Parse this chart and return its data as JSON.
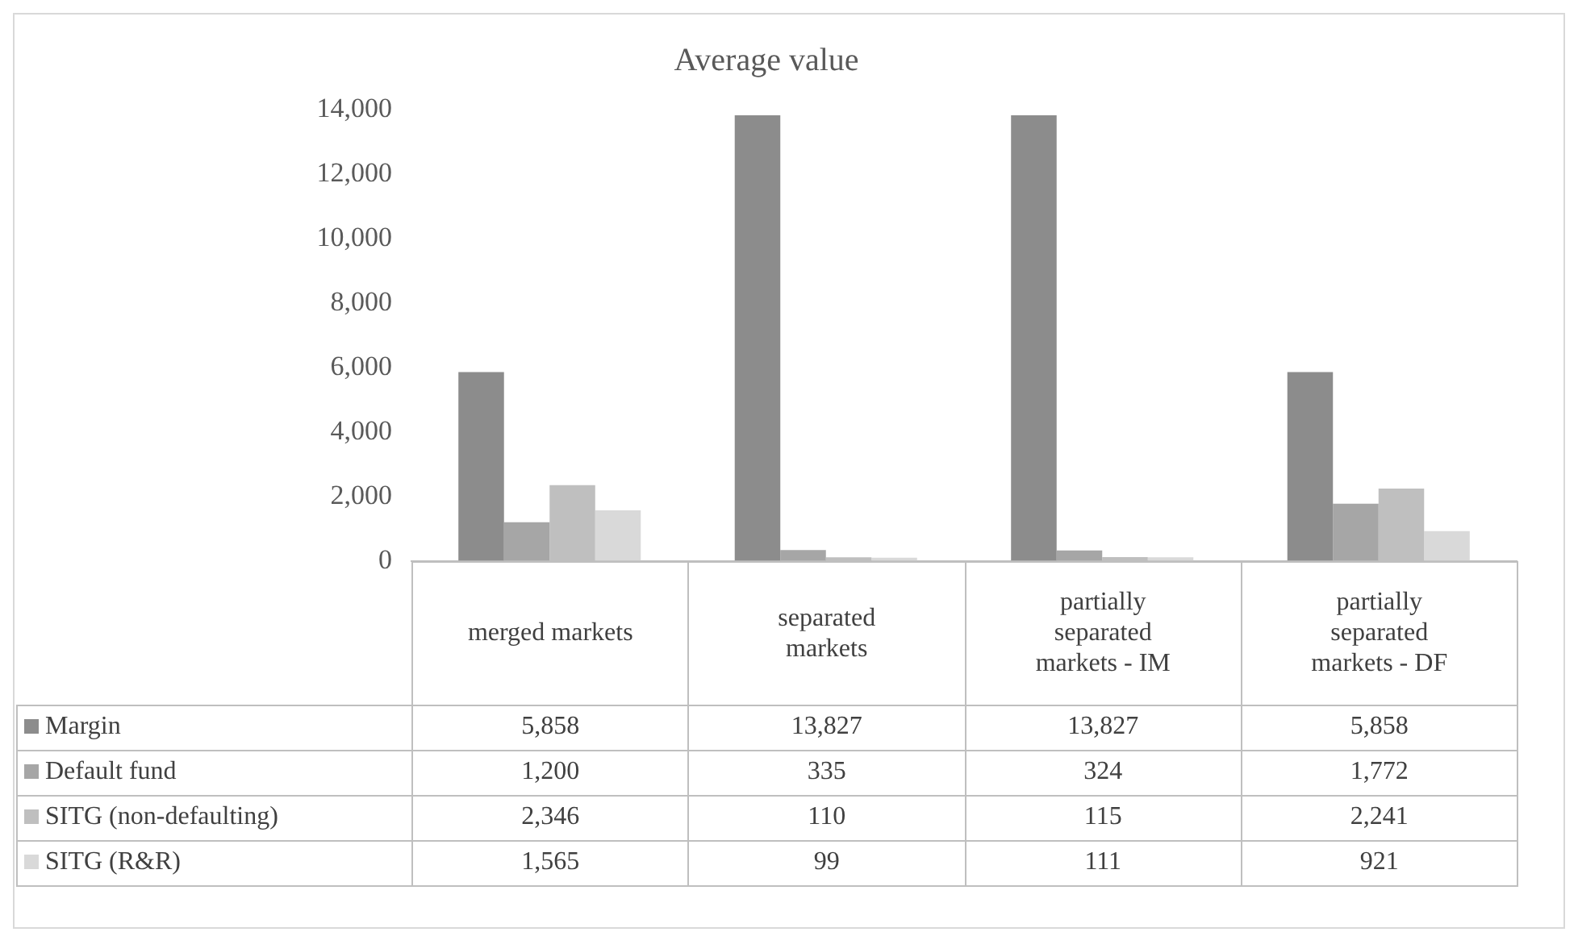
{
  "chart_data": {
    "type": "bar",
    "title": "Average value",
    "categories": [
      "merged markets",
      "separated markets",
      "partially separated markets - IM",
      "partially separated markets - DF"
    ],
    "series": [
      {
        "name": "Margin",
        "color": "#8c8c8c",
        "values": [
          5858,
          13827,
          13827,
          5858
        ],
        "value_labels": [
          "5,858",
          "13,827",
          "13,827",
          "5,858"
        ]
      },
      {
        "name": "Default fund",
        "color": "#a6a6a6",
        "values": [
          1200,
          335,
          324,
          1772
        ],
        "value_labels": [
          "1,200",
          "335",
          "324",
          "1,772"
        ]
      },
      {
        "name": "SITG (non-defaulting)",
        "color": "#bfbfbf",
        "values": [
          2346,
          110,
          115,
          2241
        ],
        "value_labels": [
          "2,346",
          "110",
          "115",
          "2,241"
        ]
      },
      {
        "name": "SITG (R&R)",
        "color": "#d9d9d9",
        "values": [
          1565,
          99,
          111,
          921
        ],
        "value_labels": [
          "1,565",
          "99",
          "111",
          "921"
        ]
      }
    ],
    "ylim": [
      0,
      14000
    ],
    "yticks": [
      {
        "value": 0,
        "label": "0"
      },
      {
        "value": 2000,
        "label": "2,000"
      },
      {
        "value": 4000,
        "label": "4,000"
      },
      {
        "value": 6000,
        "label": "6,000"
      },
      {
        "value": 8000,
        "label": "8,000"
      },
      {
        "value": 10000,
        "label": "10,000"
      },
      {
        "value": 12000,
        "label": "12,000"
      },
      {
        "value": 14000,
        "label": "14,000"
      }
    ],
    "legend": "bottom"
  }
}
